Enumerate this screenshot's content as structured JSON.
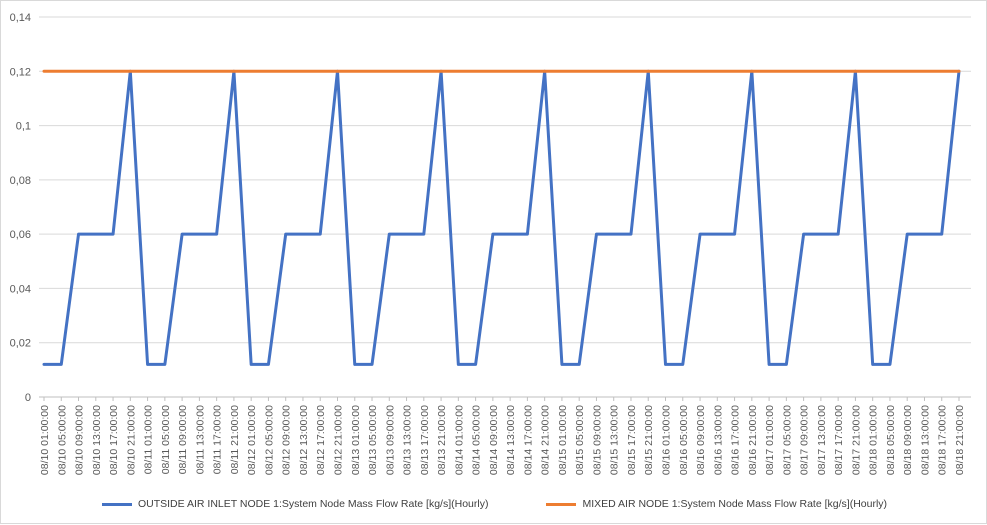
{
  "chart_data": {
    "type": "line",
    "x": [
      "08/10 01:00:00",
      "08/10 05:00:00",
      "08/10 09:00:00",
      "08/10 13:00:00",
      "08/10 17:00:00",
      "08/10 21:00:00",
      "08/11 01:00:00",
      "08/11 05:00:00",
      "08/11 09:00:00",
      "08/11 13:00:00",
      "08/11 17:00:00",
      "08/11 21:00:00",
      "08/12 01:00:00",
      "08/12 05:00:00",
      "08/12 09:00:00",
      "08/12 13:00:00",
      "08/12 17:00:00",
      "08/12 21:00:00",
      "08/13 01:00:00",
      "08/13 05:00:00",
      "08/13 09:00:00",
      "08/13 13:00:00",
      "08/13 17:00:00",
      "08/13 21:00:00",
      "08/14 01:00:00",
      "08/14 05:00:00",
      "08/14 09:00:00",
      "08/14 13:00:00",
      "08/14 17:00:00",
      "08/14 21:00:00",
      "08/15 01:00:00",
      "08/15 05:00:00",
      "08/15 09:00:00",
      "08/15 13:00:00",
      "08/15 17:00:00",
      "08/15 21:00:00",
      "08/16 01:00:00",
      "08/16 05:00:00",
      "08/16 09:00:00",
      "08/16 13:00:00",
      "08/16 17:00:00",
      "08/16 21:00:00",
      "08/17 01:00:00",
      "08/17 05:00:00",
      "08/17 09:00:00",
      "08/17 13:00:00",
      "08/17 17:00:00",
      "08/17 21:00:00",
      "08/18 01:00:00",
      "08/18 05:00:00",
      "08/18 09:00:00",
      "08/18 13:00:00",
      "08/18 17:00:00",
      "08/18 21:00:00"
    ],
    "yticks": [
      "0",
      "0,02",
      "0,04",
      "0,06",
      "0,08",
      "0,1",
      "0,12",
      "0,14"
    ],
    "ylim": [
      0,
      0.14
    ],
    "series": [
      {
        "name": "OUTSIDE AIR INLET NODE 1:System Node Mass Flow Rate [kg/s](Hourly)",
        "color": "#4472c4",
        "values": [
          0.012,
          0.012,
          0.06,
          0.06,
          0.06,
          0.12,
          0.012,
          0.012,
          0.06,
          0.06,
          0.06,
          0.12,
          0.012,
          0.012,
          0.06,
          0.06,
          0.06,
          0.12,
          0.012,
          0.012,
          0.06,
          0.06,
          0.06,
          0.12,
          0.012,
          0.012,
          0.06,
          0.06,
          0.06,
          0.12,
          0.012,
          0.012,
          0.06,
          0.06,
          0.06,
          0.12,
          0.012,
          0.012,
          0.06,
          0.06,
          0.06,
          0.12,
          0.012,
          0.012,
          0.06,
          0.06,
          0.06,
          0.12,
          0.012,
          0.012,
          0.06,
          0.06,
          0.06,
          0.12
        ]
      },
      {
        "name": "MIXED AIR NODE 1:System Node Mass Flow Rate [kg/s](Hourly)",
        "color": "#ed7d31",
        "values": [
          0.12,
          0.12,
          0.12,
          0.12,
          0.12,
          0.12,
          0.12,
          0.12,
          0.12,
          0.12,
          0.12,
          0.12,
          0.12,
          0.12,
          0.12,
          0.12,
          0.12,
          0.12,
          0.12,
          0.12,
          0.12,
          0.12,
          0.12,
          0.12,
          0.12,
          0.12,
          0.12,
          0.12,
          0.12,
          0.12,
          0.12,
          0.12,
          0.12,
          0.12,
          0.12,
          0.12,
          0.12,
          0.12,
          0.12,
          0.12,
          0.12,
          0.12,
          0.12,
          0.12,
          0.12,
          0.12,
          0.12,
          0.12,
          0.12,
          0.12,
          0.12,
          0.12,
          0.12,
          0.12
        ]
      }
    ],
    "grid": true,
    "legend_position": "bottom"
  }
}
